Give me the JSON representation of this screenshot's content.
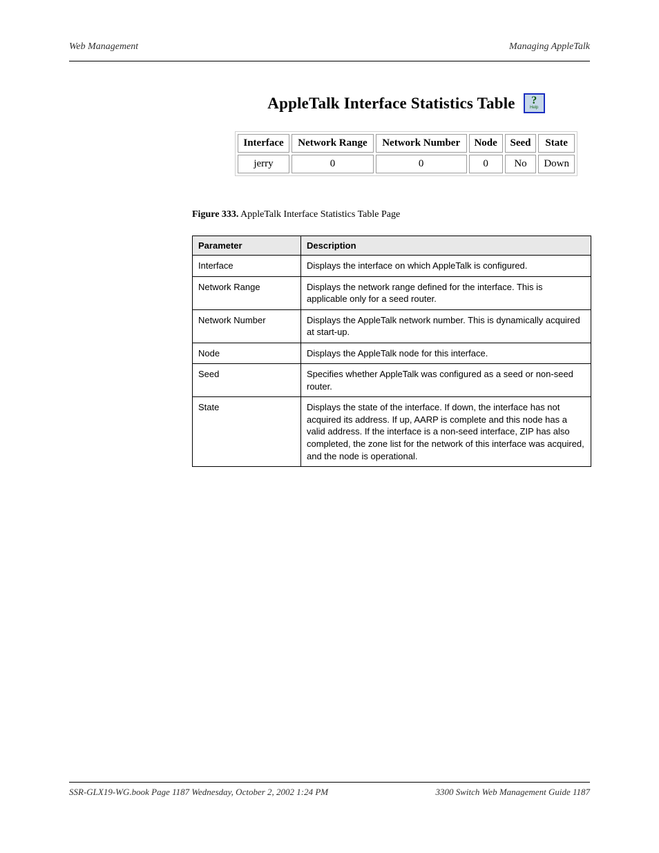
{
  "header": {
    "left": "Web Management",
    "right": "Managing AppleTalk"
  },
  "figure": {
    "title": "AppleTalk Interface Statistics Table",
    "help_icon_symbol": "?",
    "help_icon_label": "Help",
    "columns": [
      "Interface",
      "Network Range",
      "Network Number",
      "Node",
      "Seed",
      "State"
    ],
    "row": {
      "interface": "jerry",
      "network_range": "0",
      "network_number": "0",
      "node": "0",
      "seed": "No",
      "state": "Down"
    }
  },
  "caption": {
    "label": "Figure 333.",
    "text": "AppleTalk Interface Statistics Table Page"
  },
  "desc_table": {
    "header_col1": "Parameter",
    "header_col2": "Description",
    "rows": [
      {
        "param": "Interface",
        "desc": "Displays the interface on which AppleTalk is configured."
      },
      {
        "param": "Network Range",
        "desc": "Displays the network range defined for the interface. This is applicable only for a seed router."
      },
      {
        "param": "Network Number",
        "desc": "Displays the AppleTalk network number. This is dynamically acquired at start-up."
      },
      {
        "param": "Node",
        "desc": "Displays the AppleTalk node for this interface."
      },
      {
        "param": "Seed",
        "desc": "Specifies whether AppleTalk was configured as a seed or non-seed router."
      },
      {
        "param": "State",
        "desc": "Displays the state of the interface. If down, the interface has not acquired its address. If up, AARP is complete and this node has a valid address. If the interface is a non-seed interface, ZIP has also completed, the zone list for the network of this interface was acquired, and the node is operational."
      }
    ]
  },
  "footer": {
    "left": "SSR-GLX19-WG.book  Page 1187  Wednesday, October 2, 2002  1:24 PM",
    "right": "3300 Switch Web Management Guide   1187"
  }
}
